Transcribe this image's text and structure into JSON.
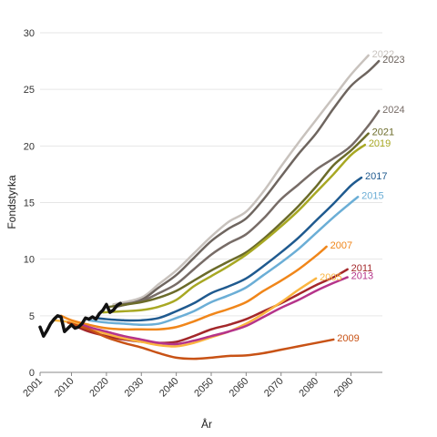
{
  "chart_data": {
    "type": "line",
    "title": "",
    "xlabel": "År",
    "ylabel": "Fondstyrka",
    "xlim": [
      2001,
      2099
    ],
    "ylim": [
      0,
      30
    ],
    "x_ticks": [
      2001,
      2010,
      2020,
      2030,
      2040,
      2050,
      2060,
      2070,
      2080,
      2090
    ],
    "y_ticks": [
      0,
      5,
      10,
      15,
      20,
      25,
      30
    ],
    "grid": true,
    "legend": "labels at line ends",
    "series": [
      {
        "name": "2022",
        "color": "#c8c2bd",
        "width": 2.5,
        "x": [
          2022,
          2030,
          2035,
          2040,
          2045,
          2050,
          2055,
          2060,
          2065,
          2070,
          2075,
          2080,
          2085,
          2090,
          2095
        ],
        "y": [
          6.0,
          6.6,
          7.8,
          9.0,
          10.5,
          12.0,
          13.3,
          14.2,
          16.0,
          18.2,
          20.3,
          22.3,
          24.3,
          26.3,
          28.0
        ]
      },
      {
        "name": "2023",
        "color": "#6e655f",
        "width": 2.5,
        "x": [
          2023,
          2030,
          2035,
          2040,
          2045,
          2050,
          2055,
          2060,
          2065,
          2070,
          2075,
          2080,
          2085,
          2090,
          2095,
          2098
        ],
        "y": [
          5.8,
          6.4,
          7.5,
          8.6,
          10.1,
          11.6,
          12.7,
          13.6,
          15.3,
          17.3,
          19.3,
          21.1,
          23.3,
          25.3,
          26.6,
          27.5
        ]
      },
      {
        "name": "2024",
        "color": "#776c67",
        "width": 2.5,
        "x": [
          2024,
          2030,
          2035,
          2040,
          2045,
          2050,
          2055,
          2060,
          2065,
          2070,
          2075,
          2080,
          2085,
          2090,
          2095,
          2098
        ],
        "y": [
          6.0,
          6.3,
          7.0,
          7.8,
          9.1,
          10.4,
          11.4,
          12.2,
          13.6,
          15.3,
          16.6,
          17.9,
          18.9,
          20.0,
          21.8,
          23.1
        ]
      },
      {
        "name": "2021",
        "color": "#6b6b2a",
        "width": 2.5,
        "x": [
          2021,
          2030,
          2035,
          2040,
          2045,
          2050,
          2055,
          2060,
          2065,
          2070,
          2075,
          2080,
          2085,
          2090,
          2095
        ],
        "y": [
          5.8,
          6.2,
          6.6,
          7.2,
          8.1,
          9.0,
          9.8,
          10.6,
          11.8,
          13.2,
          14.7,
          16.4,
          18.3,
          19.6,
          21.1
        ]
      },
      {
        "name": "2019",
        "color": "#a8a823",
        "width": 2.5,
        "x": [
          2019,
          2025,
          2030,
          2035,
          2040,
          2045,
          2050,
          2055,
          2060,
          2065,
          2070,
          2075,
          2080,
          2085,
          2090,
          2094
        ],
        "y": [
          5.3,
          5.4,
          5.5,
          5.8,
          6.4,
          7.6,
          8.5,
          9.4,
          10.4,
          11.6,
          12.9,
          14.3,
          15.9,
          17.5,
          19.2,
          20.1
        ]
      },
      {
        "name": "2017",
        "color": "#1f5a8f",
        "width": 2.5,
        "x": [
          2017,
          2020,
          2025,
          2030,
          2035,
          2040,
          2045,
          2050,
          2055,
          2060,
          2065,
          2070,
          2075,
          2080,
          2085,
          2090,
          2093
        ],
        "y": [
          4.8,
          4.7,
          4.6,
          4.6,
          4.8,
          5.4,
          6.1,
          7.0,
          7.6,
          8.3,
          9.4,
          10.6,
          11.9,
          13.4,
          14.9,
          16.5,
          17.2
        ]
      },
      {
        "name": "2015",
        "color": "#6baed6",
        "width": 2.5,
        "x": [
          2015,
          2020,
          2025,
          2030,
          2035,
          2040,
          2045,
          2050,
          2055,
          2060,
          2065,
          2070,
          2075,
          2080,
          2085,
          2090,
          2092
        ],
        "y": [
          4.6,
          4.4,
          4.3,
          4.2,
          4.3,
          4.8,
          5.4,
          6.2,
          6.8,
          7.5,
          8.6,
          9.7,
          10.9,
          12.3,
          13.7,
          15.0,
          15.5
        ]
      },
      {
        "name": "2007",
        "color": "#f0861a",
        "width": 2.5,
        "x": [
          2007,
          2010,
          2015,
          2020,
          2025,
          2030,
          2035,
          2040,
          2045,
          2050,
          2055,
          2060,
          2065,
          2070,
          2075,
          2080,
          2083
        ],
        "y": [
          5.0,
          4.6,
          4.2,
          3.9,
          3.8,
          3.8,
          3.8,
          4.0,
          4.5,
          5.1,
          5.6,
          6.2,
          7.2,
          8.1,
          9.1,
          10.3,
          11.1
        ]
      },
      {
        "name": "2011",
        "color": "#a3272a",
        "width": 2.5,
        "x": [
          2011,
          2015,
          2020,
          2025,
          2030,
          2035,
          2040,
          2045,
          2050,
          2055,
          2060,
          2065,
          2070,
          2075,
          2080,
          2085,
          2089
        ],
        "y": [
          4.1,
          3.6,
          3.2,
          2.9,
          2.7,
          2.6,
          2.7,
          3.2,
          3.8,
          4.2,
          4.7,
          5.4,
          6.1,
          6.9,
          7.7,
          8.4,
          9.1
        ]
      },
      {
        "name": "2005",
        "color": "#fbb540",
        "width": 2.5,
        "x": [
          2005,
          2010,
          2015,
          2020,
          2025,
          2030,
          2035,
          2040,
          2045,
          2050,
          2055,
          2060,
          2065,
          2070,
          2075,
          2080
        ],
        "y": [
          4.6,
          4.4,
          3.9,
          3.4,
          3.0,
          2.7,
          2.4,
          2.3,
          2.6,
          3.1,
          3.6,
          4.3,
          5.2,
          6.2,
          7.3,
          8.3
        ]
      },
      {
        "name": "2013",
        "color": "#b5348a",
        "width": 2.5,
        "x": [
          2013,
          2015,
          2020,
          2025,
          2030,
          2035,
          2040,
          2045,
          2050,
          2055,
          2060,
          2065,
          2070,
          2075,
          2080,
          2085,
          2089
        ],
        "y": [
          4.2,
          4.0,
          3.6,
          3.2,
          2.9,
          2.6,
          2.5,
          2.8,
          3.2,
          3.6,
          4.1,
          4.9,
          5.7,
          6.4,
          7.2,
          7.9,
          8.4
        ]
      },
      {
        "name": "2009",
        "color": "#c85215",
        "width": 2.5,
        "x": [
          2009,
          2015,
          2020,
          2025,
          2030,
          2035,
          2040,
          2045,
          2050,
          2055,
          2060,
          2065,
          2070,
          2075,
          2080,
          2085
        ],
        "y": [
          4.4,
          3.8,
          3.1,
          2.6,
          2.2,
          1.7,
          1.3,
          1.2,
          1.3,
          1.45,
          1.5,
          1.7,
          2.0,
          2.3,
          2.6,
          2.9
        ]
      },
      {
        "name": "",
        "color": "#111111",
        "width": 3.5,
        "x": [
          2001,
          2002,
          2003,
          2004,
          2005,
          2006,
          2007,
          2008,
          2009,
          2010,
          2011,
          2012,
          2013,
          2014,
          2015,
          2016,
          2017,
          2018,
          2019,
          2020,
          2021,
          2022,
          2023,
          2024
        ],
        "y": [
          4.0,
          3.2,
          3.7,
          4.3,
          4.7,
          5.0,
          4.9,
          3.6,
          3.9,
          4.2,
          3.9,
          4.0,
          4.3,
          4.8,
          4.7,
          4.9,
          4.7,
          5.2,
          5.5,
          6.0,
          5.3,
          5.5,
          5.9,
          6.1
        ]
      }
    ]
  }
}
